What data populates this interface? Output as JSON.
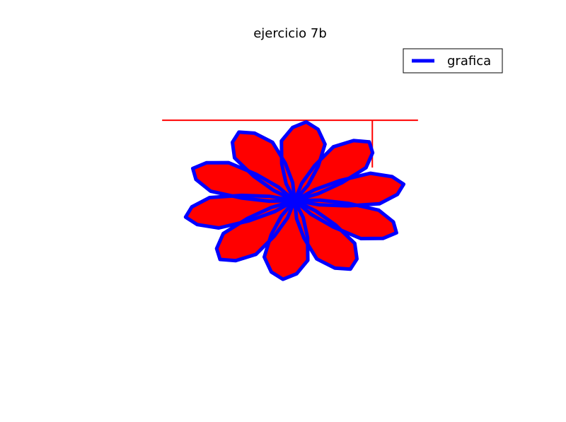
{
  "chart_data": {
    "type": "line",
    "title": "ejercicio 7b",
    "xlabel": "",
    "ylabel": "",
    "axes_visible": false,
    "legend": {
      "entries": [
        "grafica"
      ],
      "position": "upper-right"
    },
    "colors": {
      "fill": "#ff0000",
      "outline": "#0000ff",
      "frame": "#ff0000"
    },
    "xlim": [
      -2.4,
      2.4
    ],
    "ylim": [
      -2.6,
      2.6
    ],
    "frame_lines": [
      {
        "name": "top-line",
        "x": [
          -1.4,
          1.4
        ],
        "y": [
          1.4,
          1.4
        ]
      },
      {
        "name": "right-line",
        "x": [
          0.9,
          0.9
        ],
        "y": [
          1.4,
          0.67
        ]
      }
    ],
    "petal_count": 10,
    "center": [
      0.05,
      0.16
    ],
    "petal_base": {
      "x": [
        0.0,
        0.12,
        0.2,
        0.24,
        0.14,
        0.0,
        -0.14,
        -0.24,
        -0.2,
        -0.12,
        0.0
      ],
      "y": [
        0.0,
        0.25,
        0.55,
        0.9,
        1.12,
        1.22,
        1.12,
        0.9,
        0.55,
        0.25,
        0.0
      ]
    },
    "petal_angles_deg": [
      -6,
      30,
      66,
      102,
      138,
      174,
      210,
      246,
      282,
      318
    ],
    "series": [
      {
        "name": "grafica",
        "type": "rose-outline",
        "color": "#0000ff",
        "fill": "#ff0000"
      }
    ]
  }
}
